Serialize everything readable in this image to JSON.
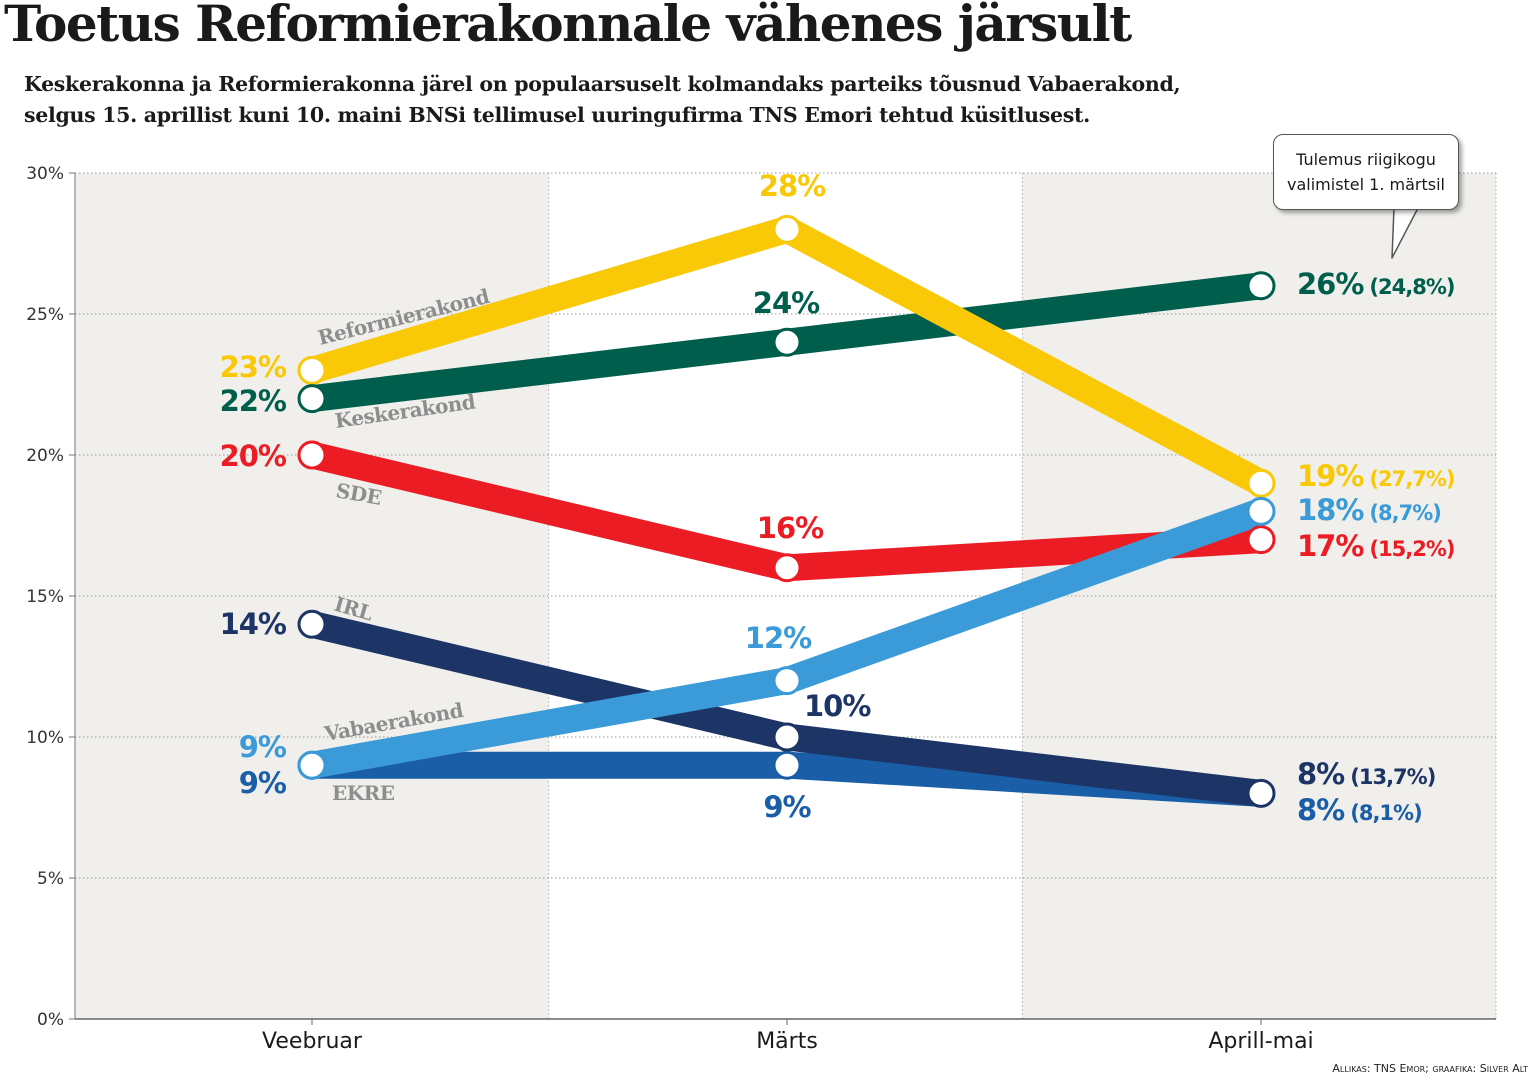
{
  "title": "Toetus Reformierakonnale vähenes järsult",
  "subtitle_lines": [
    "Keskerakonna ja Reformierakonna järel on populaarsuselt kolmandaks parteiks tõusnud Vabaerakond,",
    "selgus 15. aprillist kuni 10. maini  BNSi tellimusel uuringufirma TNS Emori tehtud küsitlusest."
  ],
  "source": "Allikas: TNS Emor; graafika: Silver Alt",
  "callout": {
    "line1": "Tulemus riigikogu",
    "line2": "valimistel 1. märtsil"
  },
  "chart_data": {
    "type": "line",
    "categories": [
      "Veebruar",
      "Märts",
      "Aprill-mai"
    ],
    "ylim": [
      0,
      30
    ],
    "y_ticks": [
      0,
      5,
      10,
      15,
      20,
      25,
      30
    ],
    "y_tick_labels": [
      "0%",
      "5%",
      "10%",
      "15%",
      "20%",
      "25%",
      "30%"
    ],
    "grid": true,
    "series": [
      {
        "name": "Reformierakond",
        "color": "#f9c908",
        "values": [
          23,
          28,
          19
        ],
        "value_labels": [
          "23%",
          "28%",
          "19%"
        ],
        "election_label": "(27,7%)"
      },
      {
        "name": "Keskerakond",
        "color": "#005e4c",
        "values": [
          22,
          24,
          26
        ],
        "value_labels": [
          "22%",
          "24%",
          "26%"
        ],
        "election_label": "(24,8%)"
      },
      {
        "name": "SDE",
        "color": "#ec1c24",
        "values": [
          20,
          16,
          17
        ],
        "value_labels": [
          "20%",
          "16%",
          "17%"
        ],
        "election_label": "(15,2%)"
      },
      {
        "name": "IRL",
        "color": "#1d3566",
        "values": [
          14,
          10,
          8
        ],
        "value_labels": [
          "14%",
          "10%",
          "8%"
        ],
        "election_label": "(13,7%)"
      },
      {
        "name": "Vabaerakond",
        "color": "#3b9ad8",
        "values": [
          9,
          12,
          18
        ],
        "value_labels": [
          "9%",
          "12%",
          "18%"
        ],
        "election_label": "(8,7%)"
      },
      {
        "name": "EKRE",
        "color": "#1a5ea8",
        "values": [
          9,
          9,
          8
        ],
        "value_labels": [
          "9%",
          "9%",
          "8%"
        ],
        "election_label": "(8,1%)"
      }
    ]
  }
}
